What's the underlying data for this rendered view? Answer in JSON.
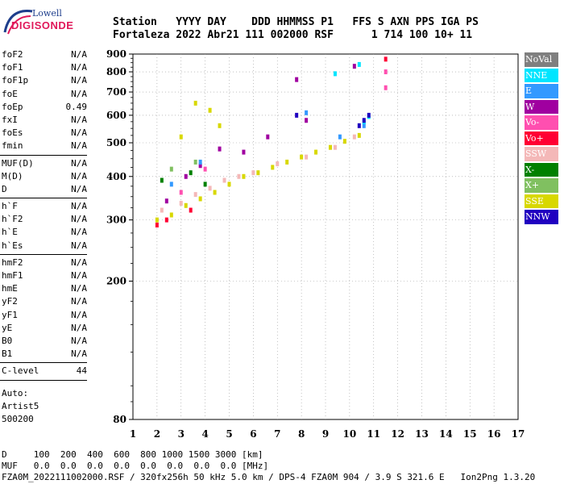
{
  "logo": {
    "line1": "Lowell",
    "line2": "DIGISONDE"
  },
  "header": {
    "line1": "Station   YYYY DAY    DDD HHMMSS P1   FFS S AXN PPS IGA PS",
    "line2": "Fortaleza 2022 Abr21 111 002000 RSF      1 714 100 10+ 11"
  },
  "parameters": [
    [
      {
        "name": "foF2",
        "value": "N/A"
      },
      {
        "name": "foF1",
        "value": "N/A"
      },
      {
        "name": "foF1p",
        "value": "N/A"
      },
      {
        "name": "foE",
        "value": "N/A"
      },
      {
        "name": "foEp",
        "value": "0.49"
      },
      {
        "name": "fxI",
        "value": "N/A"
      },
      {
        "name": "foEs",
        "value": "N/A"
      },
      {
        "name": "fmin",
        "value": "N/A"
      }
    ],
    [
      {
        "name": "MUF(D)",
        "value": "N/A"
      },
      {
        "name": "M(D)",
        "value": "N/A"
      },
      {
        "name": "D",
        "value": "N/A"
      }
    ],
    [
      {
        "name": "h`F",
        "value": "N/A"
      },
      {
        "name": "h`F2",
        "value": "N/A"
      },
      {
        "name": "h`E",
        "value": "N/A"
      },
      {
        "name": "h`Es",
        "value": "N/A"
      }
    ],
    [
      {
        "name": "hmF2",
        "value": "N/A"
      },
      {
        "name": "hmF1",
        "value": "N/A"
      },
      {
        "name": "hmE",
        "value": "N/A"
      },
      {
        "name": "yF2",
        "value": "N/A"
      },
      {
        "name": "yF1",
        "value": "N/A"
      },
      {
        "name": "yE",
        "value": "N/A"
      },
      {
        "name": "B0",
        "value": "N/A"
      },
      {
        "name": "B1",
        "value": "N/A"
      }
    ],
    [
      {
        "name": "C-level",
        "value": "44"
      }
    ]
  ],
  "auto": {
    "label": "Auto:",
    "system": "Artist5",
    "version": "500200"
  },
  "legend": [
    {
      "label": "NoVal",
      "color": "#7f7f7f"
    },
    {
      "label": "NNE",
      "color": "#00e5ff"
    },
    {
      "label": "E",
      "color": "#3399ff"
    },
    {
      "label": "W",
      "color": "#a000a0"
    },
    {
      "label": "Vo-",
      "color": "#ff4fb0"
    },
    {
      "label": "Vo+",
      "color": "#ff0033"
    },
    {
      "label": "SSW",
      "color": "#f4b8b8"
    },
    {
      "label": "X-",
      "color": "#008000"
    },
    {
      "label": "X+",
      "color": "#80c060"
    },
    {
      "label": "SSE",
      "color": "#d8d800"
    },
    {
      "label": "NNW",
      "color": "#2000c0"
    }
  ],
  "chart_data": {
    "type": "scatter",
    "title": "",
    "xlabel": "",
    "ylabel": "",
    "x_ticks": [
      "1",
      "2",
      "3",
      "4",
      "5",
      "6",
      "7",
      "8",
      "9",
      "10",
      "11",
      "12",
      "13",
      "14",
      "15",
      "16",
      "17"
    ],
    "y_ticks": [
      "80",
      "200",
      "300",
      "400",
      "500",
      "600",
      "700",
      "800",
      "900"
    ],
    "xlim": [
      1,
      17
    ],
    "ylim": [
      80,
      900
    ],
    "y_scale": "log",
    "grid": true,
    "series": [
      {
        "name": "SSE",
        "color": "#d8d800",
        "points": [
          [
            2.0,
            300
          ],
          [
            2.6,
            310
          ],
          [
            3.2,
            330
          ],
          [
            3.8,
            345
          ],
          [
            4.4,
            360
          ],
          [
            5.0,
            380
          ],
          [
            5.6,
            400
          ],
          [
            6.2,
            410
          ],
          [
            6.8,
            425
          ],
          [
            7.4,
            440
          ],
          [
            8.0,
            455
          ],
          [
            8.6,
            470
          ],
          [
            9.2,
            485
          ],
          [
            9.8,
            505
          ],
          [
            10.4,
            525
          ],
          [
            3.6,
            650
          ],
          [
            4.2,
            620
          ],
          [
            4.6,
            560
          ],
          [
            3.0,
            520
          ]
        ]
      },
      {
        "name": "SSW",
        "color": "#f4b8b8",
        "points": [
          [
            2.2,
            320
          ],
          [
            3.0,
            335
          ],
          [
            3.6,
            355
          ],
          [
            4.2,
            370
          ],
          [
            4.8,
            390
          ],
          [
            5.4,
            400
          ],
          [
            6.0,
            410
          ],
          [
            7.0,
            435
          ],
          [
            8.2,
            455
          ],
          [
            9.4,
            485
          ],
          [
            10.2,
            520
          ]
        ]
      },
      {
        "name": "W",
        "color": "#a000a0",
        "points": [
          [
            2.4,
            340
          ],
          [
            3.2,
            400
          ],
          [
            3.8,
            430
          ],
          [
            4.6,
            480
          ],
          [
            5.6,
            470
          ],
          [
            6.6,
            520
          ],
          [
            7.8,
            760
          ],
          [
            8.2,
            580
          ],
          [
            10.2,
            830
          ]
        ]
      },
      {
        "name": "Vo+",
        "color": "#ff0033",
        "points": [
          [
            2.0,
            290
          ],
          [
            2.4,
            300
          ],
          [
            3.4,
            320
          ],
          [
            11.5,
            870
          ]
        ]
      },
      {
        "name": "Vo-",
        "color": "#ff4fb0",
        "points": [
          [
            3.0,
            360
          ],
          [
            4.0,
            420
          ],
          [
            11.5,
            800
          ],
          [
            11.5,
            720
          ]
        ]
      },
      {
        "name": "E",
        "color": "#3399ff",
        "points": [
          [
            2.6,
            380
          ],
          [
            3.8,
            440
          ],
          [
            9.6,
            520
          ],
          [
            10.6,
            560
          ],
          [
            8.2,
            610
          ]
        ]
      },
      {
        "name": "NNE",
        "color": "#00e5ff",
        "points": [
          [
            10.6,
            575
          ],
          [
            10.8,
            595
          ],
          [
            9.4,
            790
          ],
          [
            10.4,
            840
          ]
        ]
      },
      {
        "name": "NNW",
        "color": "#2000c0",
        "points": [
          [
            10.4,
            560
          ],
          [
            10.6,
            580
          ],
          [
            10.8,
            600
          ],
          [
            7.8,
            600
          ]
        ]
      },
      {
        "name": "X-",
        "color": "#008000",
        "points": [
          [
            2.2,
            390
          ],
          [
            3.4,
            410
          ],
          [
            4.0,
            380
          ]
        ]
      },
      {
        "name": "X+",
        "color": "#80c060",
        "points": [
          [
            2.6,
            420
          ],
          [
            3.6,
            440
          ]
        ]
      }
    ]
  },
  "footer": {
    "d_row": "D     100  200  400  600  800 1000 1500 3000 [km]",
    "muf_row": "MUF   0.0  0.0  0.0  0.0  0.0  0.0  0.0  0.0 [MHz]",
    "info": "FZA0M_2022111002000.RSF / 320fx256h 50 kHz 5.0 km / DPS-4 FZA0M 904 / 3.9 S 321.6 E   Ion2Png 1.3.20"
  }
}
